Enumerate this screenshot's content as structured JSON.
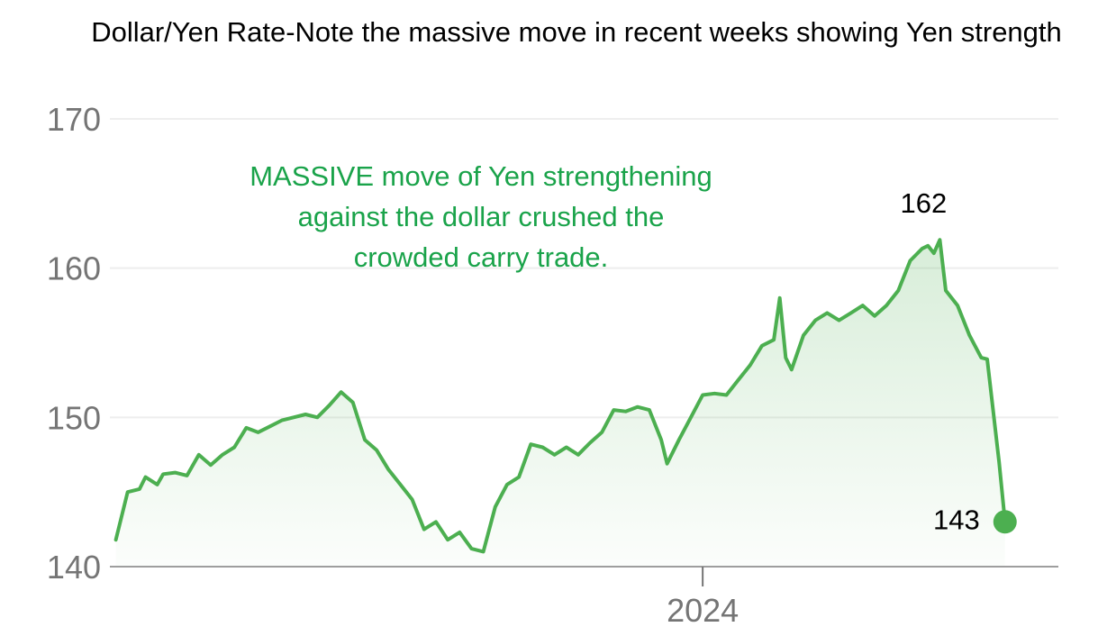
{
  "chart_data": {
    "type": "area",
    "title": "Dollar/Yen Rate-Note the massive move in recent weeks showing Yen strength",
    "xlabel": "",
    "ylabel": "",
    "ylim": [
      140,
      170
    ],
    "y_ticks": [
      "170",
      "160",
      "150",
      "140"
    ],
    "x_ticks": [
      {
        "label": "2024",
        "x": 2024.0
      }
    ],
    "xlim": [
      2023.0,
      2024.6
    ],
    "grid": true,
    "colors": {
      "line": "#4caf50",
      "fill": "#4caf50",
      "annotation": "#1aa34a",
      "grid": "#eeeeee",
      "axis": "#9e9e9e"
    },
    "annotations": {
      "text_lines": [
        "MASSIVE move of Yen strengthening",
        "against the dollar crushed the",
        "crowded carry trade."
      ],
      "peak_label": "162",
      "end_label": "143"
    },
    "series": [
      {
        "points": [
          [
            2023.01,
            141.8
          ],
          [
            2023.03,
            145.0
          ],
          [
            2023.05,
            145.2
          ],
          [
            2023.06,
            146.0
          ],
          [
            2023.08,
            145.5
          ],
          [
            2023.09,
            146.2
          ],
          [
            2023.11,
            146.3
          ],
          [
            2023.13,
            146.1
          ],
          [
            2023.15,
            147.5
          ],
          [
            2023.17,
            146.8
          ],
          [
            2023.19,
            147.5
          ],
          [
            2023.21,
            148.0
          ],
          [
            2023.23,
            149.3
          ],
          [
            2023.25,
            149.0
          ],
          [
            2023.27,
            149.4
          ],
          [
            2023.29,
            149.8
          ],
          [
            2023.31,
            150.0
          ],
          [
            2023.33,
            150.2
          ],
          [
            2023.35,
            150.0
          ],
          [
            2023.37,
            150.8
          ],
          [
            2023.39,
            151.7
          ],
          [
            2023.41,
            151.0
          ],
          [
            2023.43,
            148.5
          ],
          [
            2023.45,
            147.8
          ],
          [
            2023.47,
            146.5
          ],
          [
            2023.49,
            145.5
          ],
          [
            2023.51,
            144.5
          ],
          [
            2023.53,
            142.5
          ],
          [
            2023.55,
            143.0
          ],
          [
            2023.57,
            141.8
          ],
          [
            2023.59,
            142.3
          ],
          [
            2023.61,
            141.2
          ],
          [
            2023.63,
            141.0
          ],
          [
            2023.65,
            144.0
          ],
          [
            2023.67,
            145.5
          ],
          [
            2023.69,
            146.0
          ],
          [
            2023.71,
            148.2
          ],
          [
            2023.73,
            148.0
          ],
          [
            2023.75,
            147.5
          ],
          [
            2023.77,
            148.0
          ],
          [
            2023.79,
            147.5
          ],
          [
            2023.81,
            148.3
          ],
          [
            2023.83,
            149.0
          ],
          [
            2023.85,
            150.5
          ],
          [
            2023.87,
            150.4
          ],
          [
            2023.89,
            150.7
          ],
          [
            2023.91,
            150.5
          ],
          [
            2023.93,
            148.5
          ],
          [
            2023.94,
            146.9
          ],
          [
            2023.96,
            148.5
          ],
          [
            2023.98,
            150.0
          ],
          [
            2024.0,
            151.5
          ],
          [
            2024.02,
            151.6
          ],
          [
            2024.04,
            151.5
          ],
          [
            2024.06,
            152.5
          ],
          [
            2024.08,
            153.5
          ],
          [
            2024.1,
            154.8
          ],
          [
            2024.12,
            155.2
          ],
          [
            2024.13,
            158.0
          ],
          [
            2024.14,
            154.0
          ],
          [
            2024.15,
            153.2
          ],
          [
            2024.17,
            155.5
          ],
          [
            2024.19,
            156.5
          ],
          [
            2024.21,
            157.0
          ],
          [
            2024.23,
            156.5
          ],
          [
            2024.25,
            157.0
          ],
          [
            2024.27,
            157.5
          ],
          [
            2024.29,
            156.8
          ],
          [
            2024.31,
            157.5
          ],
          [
            2024.33,
            158.5
          ],
          [
            2024.35,
            160.5
          ],
          [
            2024.37,
            161.3
          ],
          [
            2024.38,
            161.5
          ],
          [
            2024.39,
            161.0
          ],
          [
            2024.4,
            161.9
          ],
          [
            2024.41,
            158.5
          ],
          [
            2024.43,
            157.5
          ],
          [
            2024.45,
            155.5
          ],
          [
            2024.47,
            154.0
          ],
          [
            2024.48,
            153.9
          ],
          [
            2024.5,
            147.0
          ],
          [
            2024.51,
            143.0
          ]
        ]
      }
    ]
  }
}
